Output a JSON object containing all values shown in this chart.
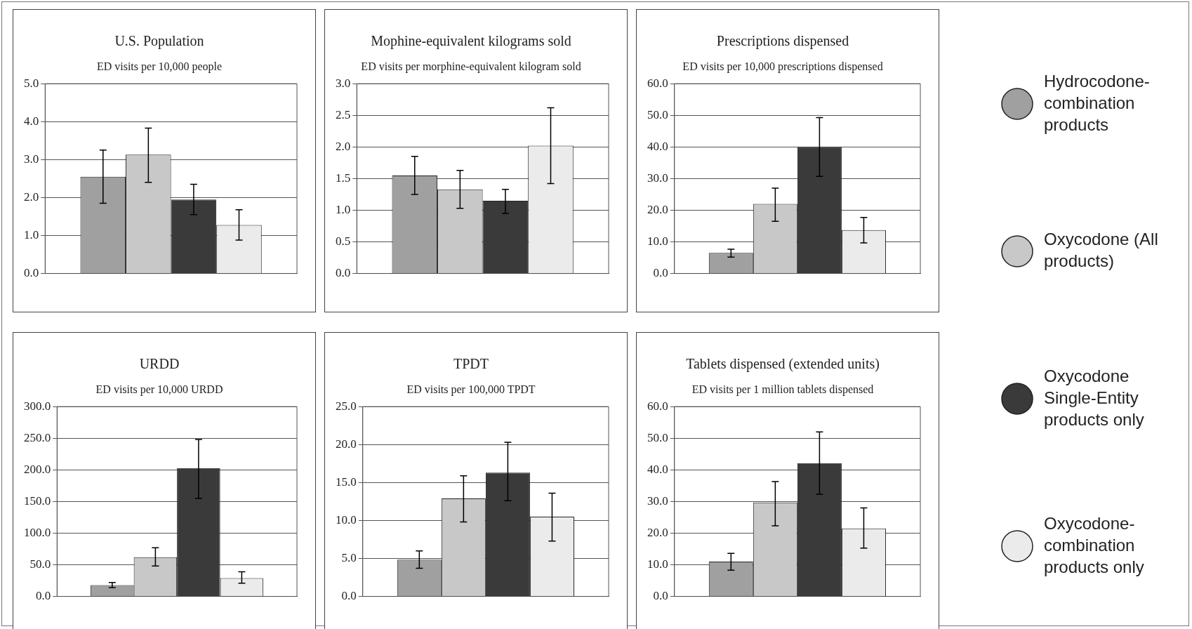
{
  "chart_data": [
    {
      "type": "bar",
      "title": "U.S. Population",
      "subtitle": "ED visits per 10,000 people",
      "categories": [
        null
      ],
      "legend": "right",
      "grid": "y",
      "ylim": [
        0,
        5
      ],
      "yticks": [
        {
          "value": 0,
          "label": "0.0"
        },
        {
          "value": 1,
          "label": "1.0"
        },
        {
          "value": 2,
          "label": "2.0"
        },
        {
          "value": 3,
          "label": "3.0"
        },
        {
          "value": 4,
          "label": "4.0"
        },
        {
          "value": 5,
          "label": "5.0"
        }
      ],
      "series": [
        {
          "name": "Hydrocodone-combination products",
          "color": "#a0a0a0",
          "values": [
            2.55
          ],
          "errors": [
            [
              1.85,
              3.25
            ]
          ]
        },
        {
          "name": "Oxycodone (All products)",
          "color": "#c8c8c8",
          "values": [
            3.13
          ],
          "errors": [
            [
              2.4,
              3.83
            ]
          ]
        },
        {
          "name": "Oxycodone Single-Entity products only",
          "color": "#3a3a3a",
          "values": [
            1.95
          ],
          "errors": [
            [
              1.55,
              2.35
            ]
          ]
        },
        {
          "name": "Oxycodone-combination products only",
          "color": "#ebebeb",
          "values": [
            1.28
          ],
          "errors": [
            [
              0.88,
              1.68
            ]
          ]
        }
      ]
    },
    {
      "type": "bar",
      "title": "Mophine-equivalent kilograms sold",
      "subtitle": "ED visits per morphine-equivalent kilogram sold",
      "categories": [
        null
      ],
      "grid": "y",
      "ylim": [
        0,
        3
      ],
      "yticks": [
        {
          "value": 0,
          "label": "0.0"
        },
        {
          "value": 0.5,
          "label": "0.5"
        },
        {
          "value": 1,
          "label": "1.0"
        },
        {
          "value": 1.5,
          "label": "1.5"
        },
        {
          "value": 2,
          "label": "2.0"
        },
        {
          "value": 2.5,
          "label": "2.5"
        },
        {
          "value": 3,
          "label": "3.0"
        }
      ],
      "series": [
        {
          "color": "#a0a0a0",
          "values": [
            1.55
          ],
          "errors": [
            [
              1.25,
              1.85
            ]
          ]
        },
        {
          "color": "#c8c8c8",
          "values": [
            1.33
          ],
          "errors": [
            [
              1.03,
              1.63
            ]
          ]
        },
        {
          "color": "#3a3a3a",
          "values": [
            1.15
          ],
          "errors": [
            [
              0.95,
              1.33
            ]
          ]
        },
        {
          "color": "#ebebeb",
          "values": [
            2.02
          ],
          "errors": [
            [
              1.42,
              2.62
            ]
          ]
        }
      ]
    },
    {
      "type": "bar",
      "title": "Prescriptions dispensed",
      "subtitle": "ED visits per 10,000 prescriptions dispensed",
      "categories": [
        null
      ],
      "grid": "y",
      "ylim": [
        0,
        60
      ],
      "yticks": [
        {
          "value": 0,
          "label": "0.0"
        },
        {
          "value": 10,
          "label": "10.0"
        },
        {
          "value": 20,
          "label": "20.0"
        },
        {
          "value": 30,
          "label": "30.0"
        },
        {
          "value": 40,
          "label": "40.0"
        },
        {
          "value": 50,
          "label": "50.0"
        },
        {
          "value": 60,
          "label": "60.0"
        }
      ],
      "series": [
        {
          "color": "#a0a0a0",
          "values": [
            6.5
          ],
          "errors": [
            [
              5.2,
              7.7
            ]
          ]
        },
        {
          "color": "#c8c8c8",
          "values": [
            22
          ],
          "errors": [
            [
              16.5,
              27
            ]
          ]
        },
        {
          "color": "#3a3a3a",
          "values": [
            40
          ],
          "errors": [
            [
              30.7,
              49.3
            ]
          ]
        },
        {
          "color": "#ebebeb",
          "values": [
            13.7
          ],
          "errors": [
            [
              9.7,
              17.7
            ]
          ]
        }
      ]
    },
    {
      "type": "bar",
      "title": "URDD",
      "subtitle": "ED visits per 10,000 URDD",
      "categories": [
        null
      ],
      "grid": "y",
      "ylim": [
        0,
        300
      ],
      "yticks": [
        {
          "value": 0,
          "label": "0.0"
        },
        {
          "value": 50,
          "label": "50.0"
        },
        {
          "value": 100,
          "label": "100.0"
        },
        {
          "value": 150,
          "label": "150.0"
        },
        {
          "value": 200,
          "label": "200.0"
        },
        {
          "value": 250,
          "label": "250.0"
        },
        {
          "value": 300,
          "label": "300.0"
        }
      ],
      "series": [
        {
          "color": "#a0a0a0",
          "values": [
            18
          ],
          "errors": [
            [
              14,
              22
            ]
          ]
        },
        {
          "color": "#c8c8c8",
          "values": [
            62
          ],
          "errors": [
            [
              48,
              77
            ]
          ]
        },
        {
          "color": "#3a3a3a",
          "values": [
            203
          ],
          "errors": [
            [
              155,
              248
            ]
          ]
        },
        {
          "color": "#ebebeb",
          "values": [
            29
          ],
          "errors": [
            [
              21,
              39
            ]
          ]
        }
      ]
    },
    {
      "type": "bar",
      "title": "TPDT",
      "subtitle": "ED visits per 100,000 TPDT",
      "categories": [
        null
      ],
      "grid": "y",
      "ylim": [
        0,
        25
      ],
      "yticks": [
        {
          "value": 0,
          "label": "0.0"
        },
        {
          "value": 5,
          "label": "5.0"
        },
        {
          "value": 10,
          "label": "10.0"
        },
        {
          "value": 15,
          "label": "15.0"
        },
        {
          "value": 20,
          "label": "20.0"
        },
        {
          "value": 25,
          "label": "25.0"
        }
      ],
      "series": [
        {
          "color": "#a0a0a0",
          "values": [
            4.85
          ],
          "errors": [
            [
              3.7,
              6.0
            ]
          ]
        },
        {
          "color": "#c8c8c8",
          "values": [
            12.9
          ],
          "errors": [
            [
              9.8,
              15.9
            ]
          ]
        },
        {
          "color": "#3a3a3a",
          "values": [
            16.3
          ],
          "errors": [
            [
              12.6,
              20.3
            ]
          ]
        },
        {
          "color": "#ebebeb",
          "values": [
            10.5
          ],
          "errors": [
            [
              7.3,
              13.6
            ]
          ]
        }
      ]
    },
    {
      "type": "bar",
      "title": "Tablets dispensed (extended units)",
      "subtitle": "ED visits per 1 million tablets dispensed",
      "categories": [
        null
      ],
      "grid": "y",
      "ylim": [
        0,
        60
      ],
      "yticks": [
        {
          "value": 0,
          "label": "0.0"
        },
        {
          "value": 10,
          "label": "10.0"
        },
        {
          "value": 20,
          "label": "20.0"
        },
        {
          "value": 30,
          "label": "30.0"
        },
        {
          "value": 40,
          "label": "40.0"
        },
        {
          "value": 50,
          "label": "50.0"
        },
        {
          "value": 60,
          "label": "60.0"
        }
      ],
      "series": [
        {
          "color": "#a0a0a0",
          "values": [
            11.0
          ],
          "errors": [
            [
              8.3,
              13.6
            ]
          ]
        },
        {
          "color": "#c8c8c8",
          "values": [
            29.7
          ],
          "errors": [
            [
              22.3,
              36.3
            ]
          ]
        },
        {
          "color": "#3a3a3a",
          "values": [
            42.1
          ],
          "errors": [
            [
              32.3,
              52.0
            ]
          ]
        },
        {
          "color": "#ebebeb",
          "values": [
            21.5
          ],
          "errors": [
            [
              15.3,
              28.0
            ]
          ]
        }
      ]
    }
  ]
}
